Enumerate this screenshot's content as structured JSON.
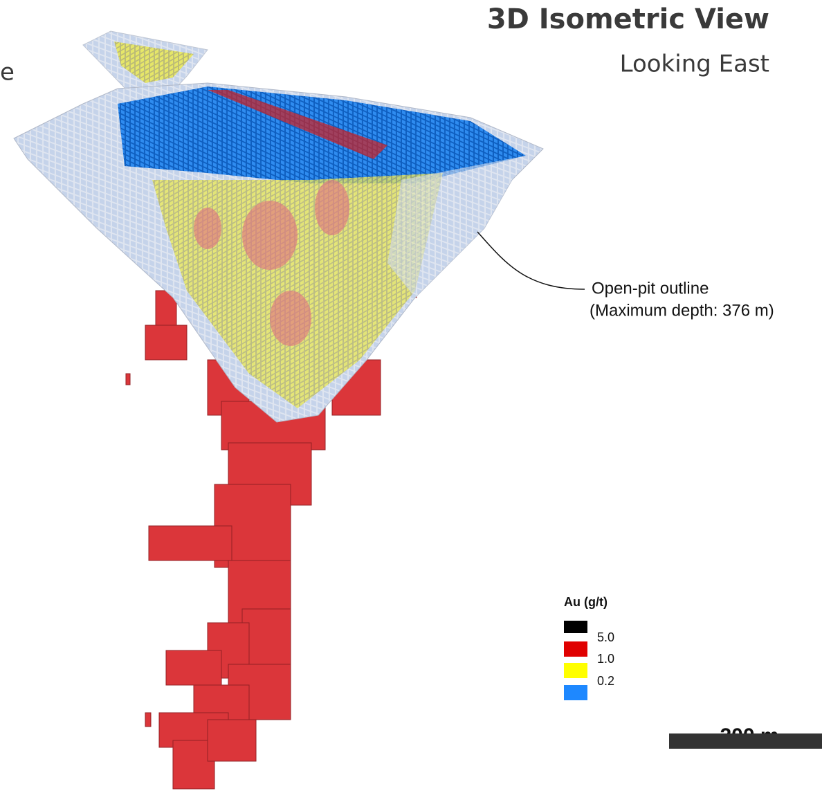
{
  "header": {
    "title": "3D Isometric View",
    "subtitle": "Looking East",
    "edge_letter": "e"
  },
  "annotation": {
    "line1": "Open-pit outline",
    "line2": "(Maximum depth: 376 m)"
  },
  "legend": {
    "title": "Au (g/t)",
    "items": [
      {
        "color": "#000000"
      },
      {
        "label": "5.0",
        "color": "#e00000"
      },
      {
        "label": "1.0",
        "color": "#ffff00"
      },
      {
        "label": "0.2",
        "color": "#1e88ff"
      }
    ]
  },
  "scale_bar": {
    "label": "200 m"
  }
}
